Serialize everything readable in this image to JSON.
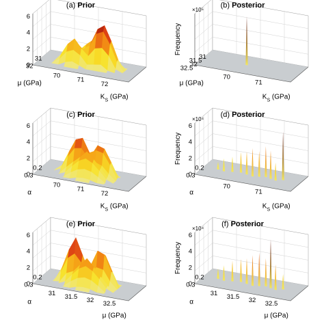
{
  "chart_data": [
    {
      "id": "a",
      "type": "surface3d",
      "title_letter": "(a)",
      "title": "Prior",
      "kind": "prior",
      "xlabel": "K",
      "xlabel_sub": "S",
      "xlabel_unit": " (GPa)",
      "ylabel": "μ (GPa)",
      "zlabel": "",
      "exponent": "",
      "x_ticks": [
        "70",
        "71",
        "72"
      ],
      "y_ticks": [
        "31",
        "32"
      ],
      "z_ticks": [
        "0",
        "2",
        "4",
        "6"
      ],
      "peaks": [
        {
          "x": 0.62,
          "y": 0.55,
          "z": 1.0,
          "w": 0.22
        },
        {
          "x": 0.35,
          "y": 0.45,
          "z": 0.6,
          "w": 0.2
        },
        {
          "x": 0.5,
          "y": 0.7,
          "z": 0.5,
          "w": 0.25
        }
      ]
    },
    {
      "id": "b",
      "type": "surface3d",
      "title_letter": "(b)",
      "title": "Posterior",
      "kind": "posterior",
      "xlabel": "K",
      "xlabel_sub": "S",
      "xlabel_unit": " (GPa)",
      "ylabel": "μ (GPa)",
      "zlabel": "Frequency",
      "exponent": "×10⁵",
      "x_ticks": [
        "70",
        "71"
      ],
      "y_ticks": [
        "31",
        "31.5",
        "32",
        "32.5"
      ],
      "z_ticks": [],
      "spikes": [
        {
          "x": 0.45,
          "y": 0.5,
          "z": 0.95
        }
      ]
    },
    {
      "id": "c",
      "type": "surface3d",
      "title_letter": "(c)",
      "title": "Prior",
      "kind": "prior",
      "xlabel": "K",
      "xlabel_sub": "S",
      "xlabel_unit": " (GPa)",
      "ylabel": "α",
      "zlabel": "",
      "exponent": "",
      "x_ticks": [
        "70",
        "71",
        "72"
      ],
      "y_ticks": [
        "0.2",
        "0.3"
      ],
      "z_ticks": [
        "0",
        "2",
        "4",
        "6"
      ],
      "peaks": [
        {
          "x": 0.4,
          "y": 0.5,
          "z": 0.85,
          "w": 0.22
        },
        {
          "x": 0.6,
          "y": 0.55,
          "z": 0.75,
          "w": 0.2
        },
        {
          "x": 0.5,
          "y": 0.35,
          "z": 0.55,
          "w": 0.25
        }
      ]
    },
    {
      "id": "d",
      "type": "surface3d",
      "title_letter": "(d)",
      "title": "Posterior",
      "kind": "posterior",
      "xlabel": "K",
      "xlabel_sub": "S",
      "xlabel_unit": " (GPa)",
      "ylabel": "α",
      "zlabel": "Frequency",
      "exponent": "×10⁴",
      "x_ticks": [
        "70",
        "71"
      ],
      "y_ticks": [
        "0.2",
        "0.3"
      ],
      "z_ticks": [
        "0",
        "2",
        "4",
        "6"
      ],
      "spikes": [
        {
          "x": 0.15,
          "y": 0.5,
          "z": 0.15
        },
        {
          "x": 0.22,
          "y": 0.45,
          "z": 0.25
        },
        {
          "x": 0.3,
          "y": 0.5,
          "z": 0.3
        },
        {
          "x": 0.38,
          "y": 0.55,
          "z": 0.4
        },
        {
          "x": 0.45,
          "y": 0.5,
          "z": 0.45
        },
        {
          "x": 0.52,
          "y": 0.45,
          "z": 0.55
        },
        {
          "x": 0.58,
          "y": 0.5,
          "z": 0.5
        },
        {
          "x": 0.64,
          "y": 0.55,
          "z": 0.6
        },
        {
          "x": 0.7,
          "y": 0.5,
          "z": 0.55
        },
        {
          "x": 0.76,
          "y": 0.45,
          "z": 0.35
        },
        {
          "x": 0.82,
          "y": 0.55,
          "z": 0.95
        }
      ]
    },
    {
      "id": "e",
      "type": "surface3d",
      "title_letter": "(e)",
      "title": "Prior",
      "kind": "prior",
      "xlabel": "μ (GPa)",
      "xlabel_sub": "",
      "xlabel_unit": "",
      "ylabel": "α",
      "zlabel": "",
      "exponent": "",
      "x_ticks": [
        "31",
        "31.5",
        "32",
        "32.5"
      ],
      "y_ticks": [
        "0.2",
        "0.3"
      ],
      "z_ticks": [
        "0",
        "2",
        "4",
        "6"
      ],
      "peaks": [
        {
          "x": 0.35,
          "y": 0.5,
          "z": 0.95,
          "w": 0.2
        },
        {
          "x": 0.6,
          "y": 0.6,
          "z": 0.9,
          "w": 0.18
        },
        {
          "x": 0.5,
          "y": 0.35,
          "z": 0.6,
          "w": 0.25
        }
      ]
    },
    {
      "id": "f",
      "type": "surface3d",
      "title_letter": "(f)",
      "title": "Posterior",
      "kind": "posterior",
      "xlabel": "μ (GPa)",
      "xlabel_sub": "",
      "xlabel_unit": "",
      "ylabel": "α",
      "zlabel": "Frequency",
      "exponent": "×10⁴",
      "x_ticks": [
        "31",
        "31.5",
        "32",
        "32.5"
      ],
      "y_ticks": [
        "0.2",
        "0.3"
      ],
      "z_ticks": [
        "0",
        "2",
        "4",
        "6"
      ],
      "spikes": [
        {
          "x": 0.15,
          "y": 0.5,
          "z": 0.2
        },
        {
          "x": 0.22,
          "y": 0.45,
          "z": 0.3
        },
        {
          "x": 0.3,
          "y": 0.5,
          "z": 0.4
        },
        {
          "x": 0.38,
          "y": 0.55,
          "z": 0.45
        },
        {
          "x": 0.45,
          "y": 0.5,
          "z": 0.5
        },
        {
          "x": 0.52,
          "y": 0.45,
          "z": 0.6
        },
        {
          "x": 0.58,
          "y": 0.5,
          "z": 0.65
        },
        {
          "x": 0.64,
          "y": 0.55,
          "z": 0.55
        },
        {
          "x": 0.7,
          "y": 0.5,
          "z": 0.95
        },
        {
          "x": 0.76,
          "y": 0.45,
          "z": 0.5
        },
        {
          "x": 0.82,
          "y": 0.55,
          "z": 0.3
        }
      ]
    }
  ]
}
